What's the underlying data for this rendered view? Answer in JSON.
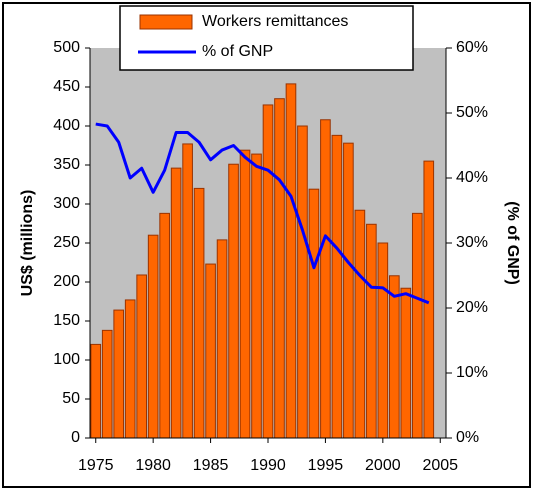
{
  "chart_data": {
    "type": "bar",
    "x": [
      1975,
      1976,
      1977,
      1978,
      1979,
      1980,
      1981,
      1982,
      1983,
      1984,
      1985,
      1986,
      1987,
      1988,
      1989,
      1990,
      1991,
      1992,
      1993,
      1994,
      1995,
      1996,
      1997,
      1998,
      1999,
      2000,
      2001,
      2002,
      2003,
      2004
    ],
    "series": [
      {
        "name": "Workers remittances",
        "type": "bar",
        "color": "#ff6600",
        "edge": "#993300",
        "values": [
          120,
          138,
          164,
          177,
          209,
          260,
          288,
          346,
          377,
          320,
          223,
          254,
          351,
          369,
          364,
          427,
          435,
          454,
          400,
          319,
          408,
          388,
          378,
          292,
          274,
          250,
          208,
          192,
          288,
          355
        ]
      },
      {
        "name": "% of GNP",
        "type": "line",
        "axis": "y2",
        "color": "#0000ff",
        "values": [
          48.3,
          48,
          45.5,
          40,
          41.5,
          37.8,
          41.2,
          47,
          47,
          45.5,
          42.8,
          44.3,
          45,
          43.2,
          41.8,
          41.2,
          39.7,
          37.2,
          32,
          26.2,
          31.1,
          29.2,
          27,
          25,
          23.2,
          23.1,
          21.8,
          22.2,
          21.5,
          20.8
        ]
      }
    ],
    "ylabel": "US$ (millions)",
    "y2label": "(% of GNP)",
    "xlim": [
      1974.5,
      2005.5
    ],
    "xticks": [
      1975,
      1980,
      1985,
      1990,
      1995,
      2000,
      2005
    ],
    "ylim": [
      0,
      500
    ],
    "yticks": [
      0,
      50,
      100,
      150,
      200,
      250,
      300,
      350,
      400,
      450,
      500
    ],
    "y2lim": [
      0,
      60
    ],
    "y2ticks": [
      {
        "value": 0,
        "label": "0%"
      },
      {
        "value": 10,
        "label": "10%"
      },
      {
        "value": 20,
        "label": "20%"
      },
      {
        "value": 30,
        "label": "30%"
      },
      {
        "value": 40,
        "label": "40%"
      },
      {
        "value": 50,
        "label": "50%"
      },
      {
        "value": 60,
        "label": "60%"
      }
    ],
    "legend": "top",
    "grid": false,
    "plot_background": "#c0c0c0"
  }
}
